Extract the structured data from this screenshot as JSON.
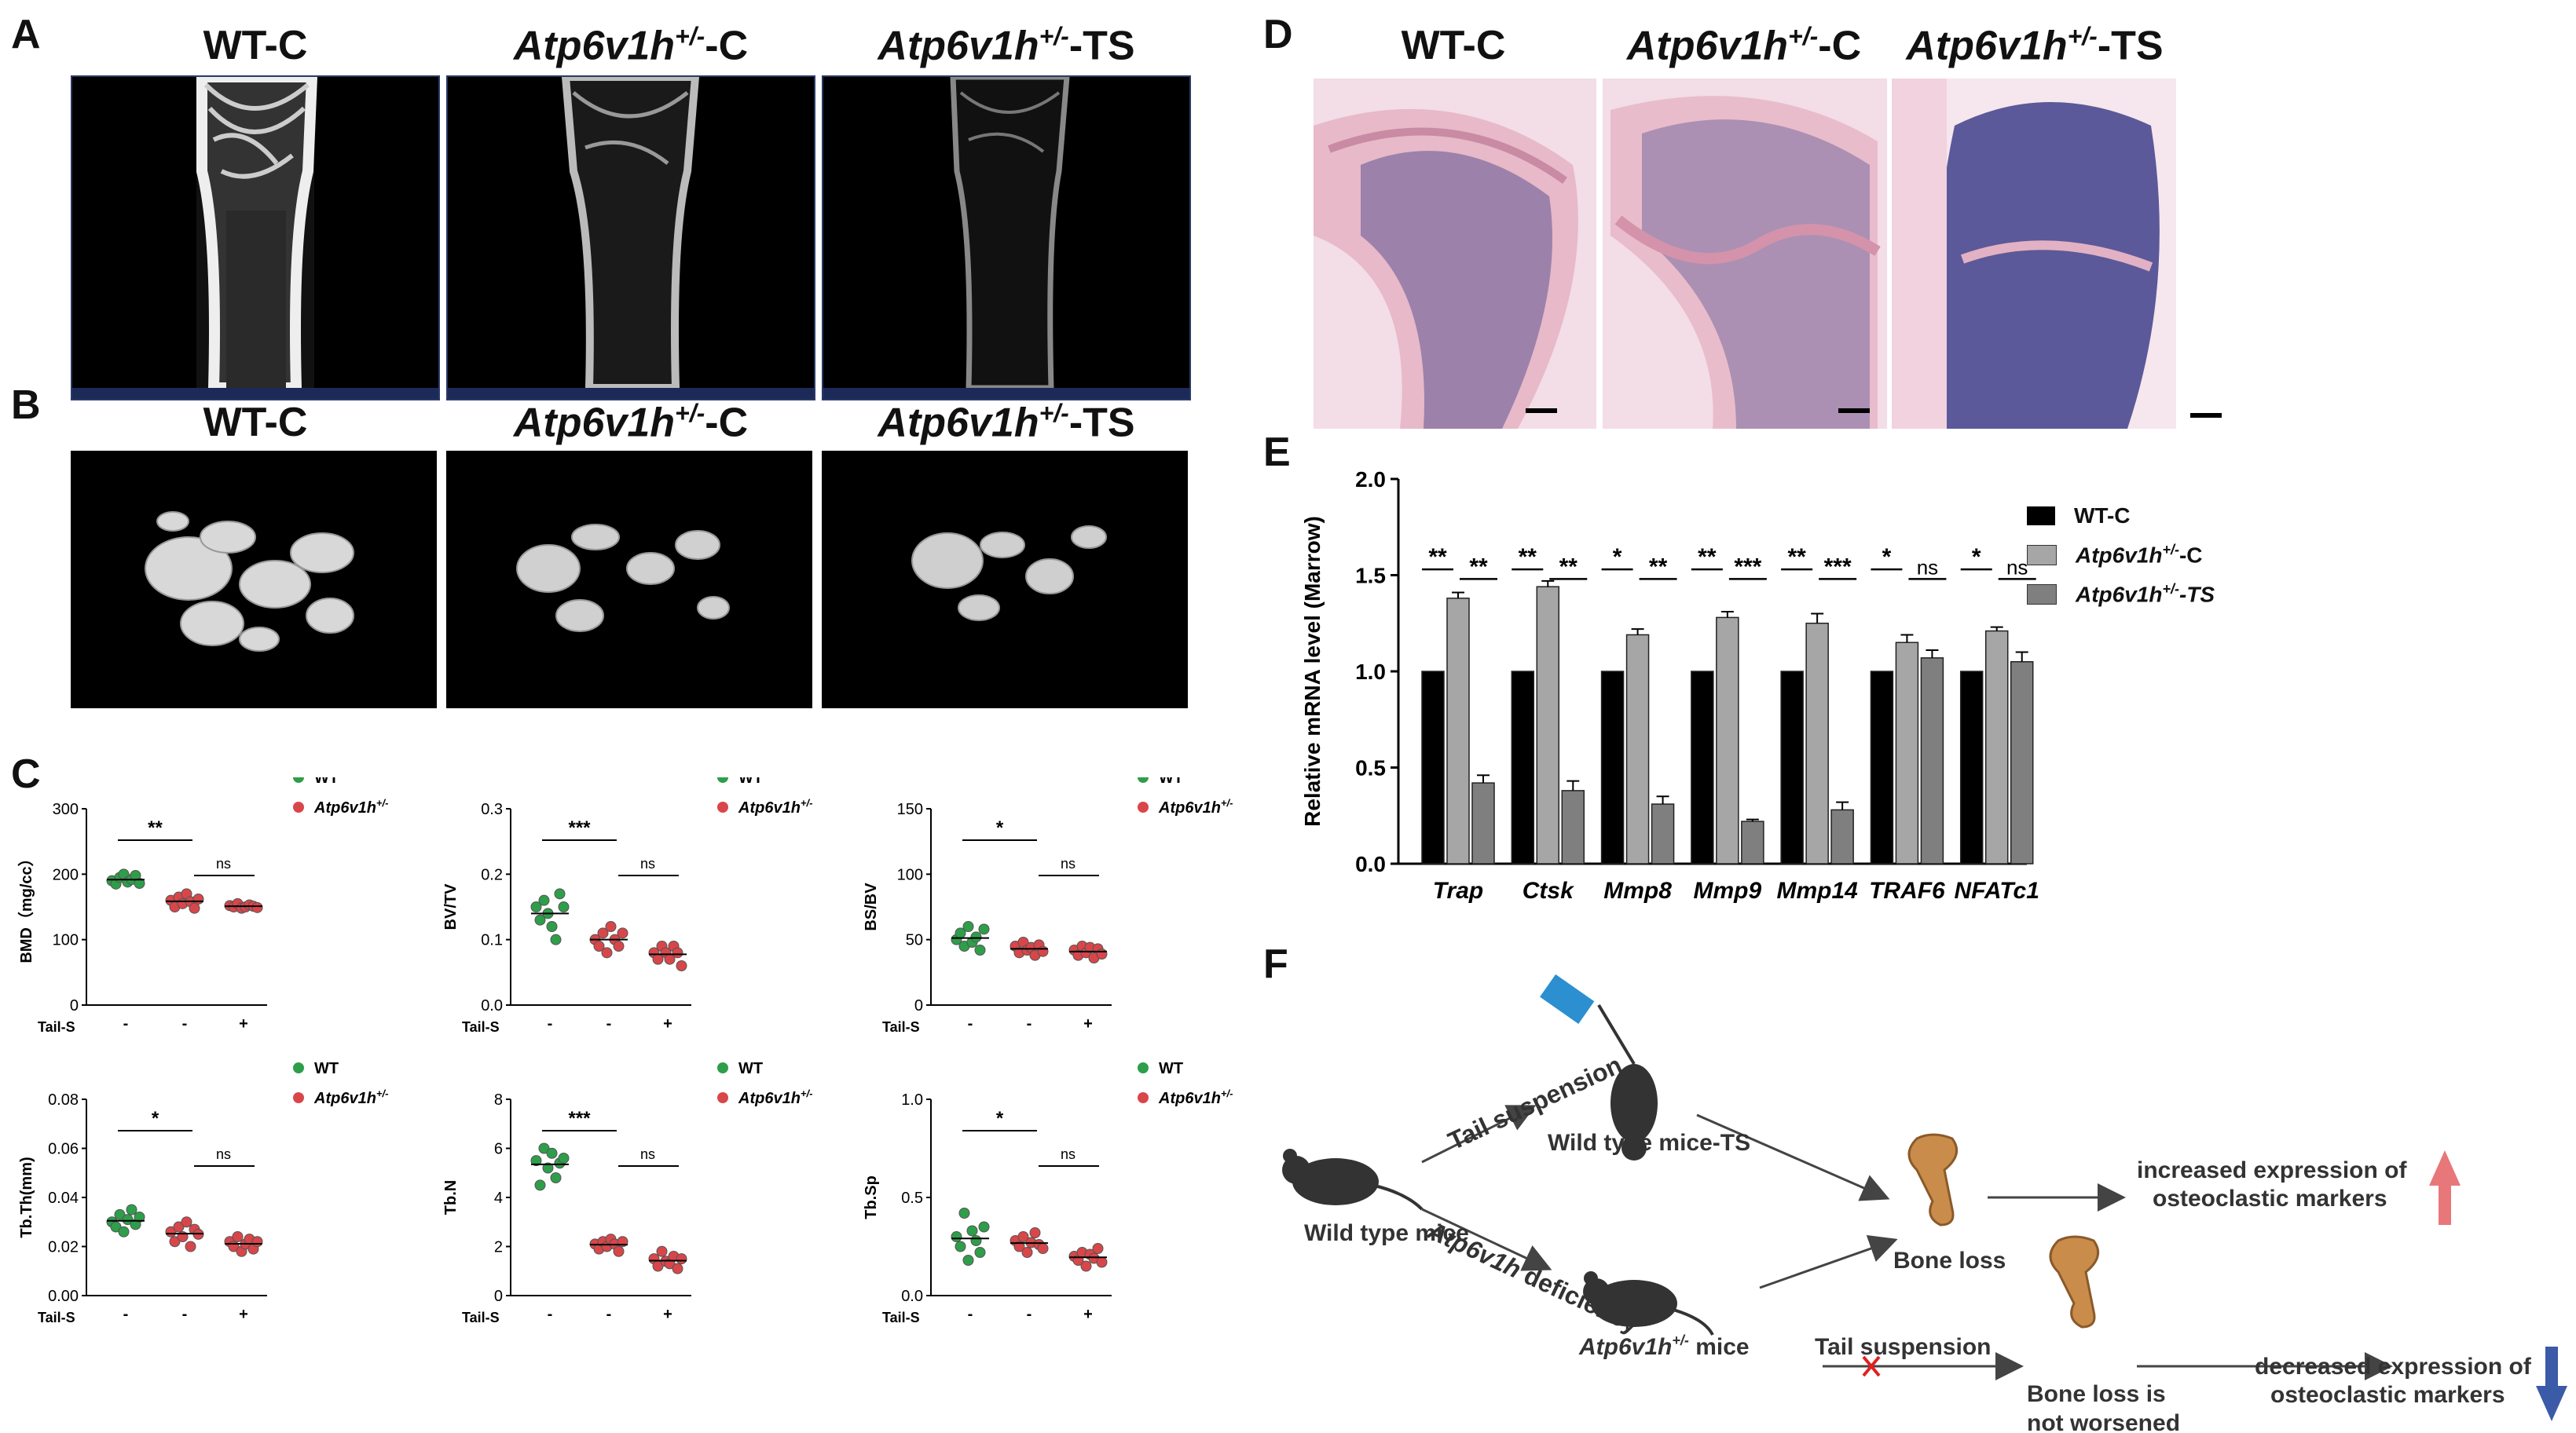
{
  "panels": {
    "A": "A",
    "B": "B",
    "C": "C",
    "D": "D",
    "E": "E",
    "F": "F"
  },
  "groups": {
    "wt_c": "WT-C",
    "gene": "Atp6v1h",
    "het_sup": "+/-",
    "suffix_c": "-C",
    "suffix_ts": "-TS"
  },
  "panel_c": {
    "legend": {
      "wt": "WT",
      "het_gene": "Atp6v1h",
      "het_sup": "+/-"
    },
    "row_label": "Tail-S",
    "row_values": [
      "-",
      "-",
      "+"
    ],
    "colors": {
      "wt": "#2e9e4a",
      "het": "#d9464a"
    },
    "plots": [
      {
        "ylabel": "BMD（mg/cc）",
        "ylim": [
          0,
          300
        ],
        "ticks": [
          "0",
          "100",
          "200",
          "300"
        ],
        "sig1": "**",
        "sig2": "ns",
        "chart_data": {
          "type": "scatter",
          "groups": [
            "WT-C",
            "Atp6v1h+/- -C",
            "Atp6v1h+/- -TS"
          ],
          "values": [
            [
              190,
              185,
              195,
              200,
              188,
              192,
              198,
              186
            ],
            [
              160,
              150,
              165,
              155,
              170,
              158,
              148,
              162
            ],
            [
              152,
              150,
              155,
              148,
              150,
              153,
              151,
              149
            ]
          ]
        }
      },
      {
        "ylabel": "BV/TV",
        "ylim": [
          0,
          0.3
        ],
        "ticks": [
          "0.0",
          "0.1",
          "0.2",
          "0.3"
        ],
        "sig1": "***",
        "sig2": "ns",
        "chart_data": {
          "type": "scatter",
          "groups": [
            "WT-C",
            "Atp6v1h+/- -C",
            "Atp6v1h+/- -TS"
          ],
          "values": [
            [
              0.15,
              0.13,
              0.16,
              0.14,
              0.12,
              0.1,
              0.17,
              0.15
            ],
            [
              0.1,
              0.09,
              0.11,
              0.08,
              0.12,
              0.1,
              0.09,
              0.11
            ],
            [
              0.08,
              0.07,
              0.09,
              0.08,
              0.07,
              0.09,
              0.08,
              0.06
            ]
          ]
        }
      },
      {
        "ylabel": "BS/BV",
        "ylim": [
          0,
          150
        ],
        "ticks": [
          "0",
          "50",
          "100",
          "150"
        ],
        "sig1": "*",
        "sig2": "ns",
        "chart_data": {
          "type": "scatter",
          "groups": [
            "WT-C",
            "Atp6v1h+/- -C",
            "Atp6v1h+/- -TS"
          ],
          "values": [
            [
              50,
              55,
              45,
              60,
              48,
              52,
              42,
              58
            ],
            [
              45,
              40,
              48,
              42,
              44,
              38,
              46,
              41
            ],
            [
              42,
              38,
              45,
              40,
              44,
              36,
              43,
              39
            ]
          ]
        }
      },
      {
        "ylabel": "Tb.Th(mm)",
        "ylim": [
          0,
          0.08
        ],
        "ticks": [
          "0.00",
          "0.02",
          "0.04",
          "0.06",
          "0.08"
        ],
        "sig1": "*",
        "sig2": "ns",
        "chart_data": {
          "type": "scatter",
          "groups": [
            "WT-C",
            "Atp6v1h+/- -C",
            "Atp6v1h+/- -TS"
          ],
          "values": [
            [
              0.03,
              0.028,
              0.033,
              0.026,
              0.031,
              0.035,
              0.029,
              0.032
            ],
            [
              0.026,
              0.022,
              0.028,
              0.024,
              0.03,
              0.02,
              0.027,
              0.025
            ],
            [
              0.022,
              0.02,
              0.024,
              0.018,
              0.021,
              0.023,
              0.019,
              0.022
            ]
          ]
        }
      },
      {
        "ylabel": "Tb.N",
        "ylim": [
          0,
          8
        ],
        "ticks": [
          "0",
          "2",
          "4",
          "6",
          "8"
        ],
        "sig1": "***",
        "sig2": "ns",
        "chart_data": {
          "type": "scatter",
          "groups": [
            "WT-C",
            "Atp6v1h+/- -C",
            "Atp6v1h+/- -TS"
          ],
          "values": [
            [
              5.5,
              4.5,
              6.0,
              5.2,
              5.8,
              4.8,
              5.4,
              5.6
            ],
            [
              2.1,
              1.9,
              2.2,
              2.0,
              2.3,
              2.1,
              1.8,
              2.2
            ],
            [
              1.5,
              1.2,
              1.8,
              1.4,
              1.3,
              1.6,
              1.1,
              1.5
            ]
          ]
        }
      },
      {
        "ylabel": "Tb.Sp",
        "ylim": [
          0,
          1.0
        ],
        "ticks": [
          "0.0",
          "0.5",
          "1.0"
        ],
        "sig1": "*",
        "sig2": "ns",
        "chart_data": {
          "type": "scatter",
          "groups": [
            "WT-C",
            "Atp6v1h+/- -C",
            "Atp6v1h+/- -TS"
          ],
          "values": [
            [
              0.3,
              0.25,
              0.42,
              0.18,
              0.33,
              0.28,
              0.22,
              0.35
            ],
            [
              0.28,
              0.25,
              0.3,
              0.22,
              0.27,
              0.32,
              0.26,
              0.24
            ],
            [
              0.2,
              0.18,
              0.22,
              0.15,
              0.21,
              0.19,
              0.24,
              0.17
            ]
          ]
        }
      }
    ]
  },
  "chart_data": {
    "type": "bar",
    "title": "",
    "ylabel": "Relative mRNA level (Marrow)",
    "ylim": [
      0,
      2.0
    ],
    "yticks": [
      "0.0",
      "0.5",
      "1.0",
      "1.5",
      "2.0"
    ],
    "categories": [
      "Trap",
      "Ctsk",
      "Mmp8",
      "Mmp9",
      "Mmp14",
      "TRAF6",
      "NFATc1"
    ],
    "series": [
      {
        "name": "WT-C",
        "color": "#000000",
        "values": [
          1.0,
          1.0,
          1.0,
          1.0,
          1.0,
          1.0,
          1.0
        ]
      },
      {
        "name": "Atp6v1h+/- -C",
        "color": "#a6a6a6",
        "values": [
          1.38,
          1.44,
          1.19,
          1.28,
          1.25,
          1.15,
          1.21
        ]
      },
      {
        "name": "Atp6v1h+/- -TS",
        "color": "#7f7f7f",
        "values": [
          0.42,
          0.38,
          0.31,
          0.22,
          0.28,
          1.07,
          1.05
        ]
      }
    ],
    "errors": [
      [
        0,
        0.03,
        0.04
      ],
      [
        0,
        0.03,
        0.05
      ],
      [
        0,
        0.03,
        0.04
      ],
      [
        0,
        0.03,
        0.01
      ],
      [
        0,
        0.05,
        0.04
      ],
      [
        0,
        0.04,
        0.04
      ],
      [
        0,
        0.02,
        0.05
      ]
    ],
    "sig_left": [
      "**",
      "**",
      "*",
      "**",
      "**",
      "*",
      "*"
    ],
    "sig_right": [
      "**",
      "**",
      "**",
      "***",
      "***",
      "ns",
      "ns"
    ],
    "legend_pos": "top-right"
  },
  "legend_e": {
    "wt": "WT-C",
    "het_gene": "Atp6v1h",
    "het_sup": "+/-",
    "c": "-C",
    "ts": "-TS"
  },
  "scheme": {
    "wild_type_mice": "Wild type mice",
    "tail_suspension": "Tail suspension",
    "wild_type_ts": "Wild type mice-TS",
    "deficiency_gene": "Atp6v1h",
    "deficiency_word": " deficiency",
    "het_mice_gene": "Atp6v1h",
    "het_mice_sup": "+/-",
    "het_mice_word": " mice",
    "tail_suspension_2": "Tail suspension",
    "bone_loss": "Bone loss",
    "not_worsened_1": "Bone loss is",
    "not_worsened_2": "not worsened",
    "increased_1": "increased expression of",
    "increased_2": "osteoclastic markers",
    "decreased_1": "decreased expression of",
    "decreased_2": "osteoclastic markers",
    "up_color": "#e8777a",
    "down_color": "#3b5aa8"
  }
}
